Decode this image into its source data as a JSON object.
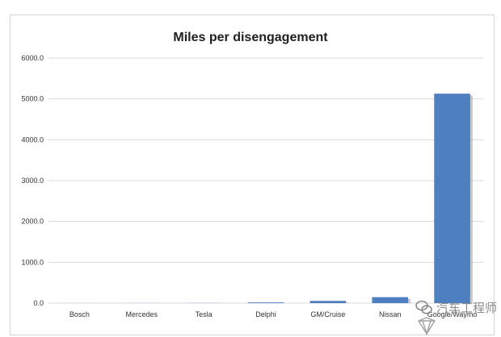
{
  "chart_data": {
    "type": "bar",
    "title": "Miles per disengagement",
    "xlabel": "",
    "ylabel": "",
    "categories": [
      "Bosch",
      "Mercedes",
      "Tesla",
      "Delphi",
      "GM/Cruise",
      "Nissan",
      "Google/Waymo"
    ],
    "values": [
      0.7,
      2,
      3,
      17.6,
      54.7,
      146.5,
      5127.9
    ],
    "ylim": [
      0,
      6000
    ],
    "yticks": [
      "0.0",
      "1000.0",
      "2000.0",
      "3000.0",
      "4000.0",
      "5000.0",
      "6000.0"
    ],
    "grid": true,
    "bar_color": "#4e7fc0"
  },
  "watermark": {
    "text": "汽车工程师"
  }
}
